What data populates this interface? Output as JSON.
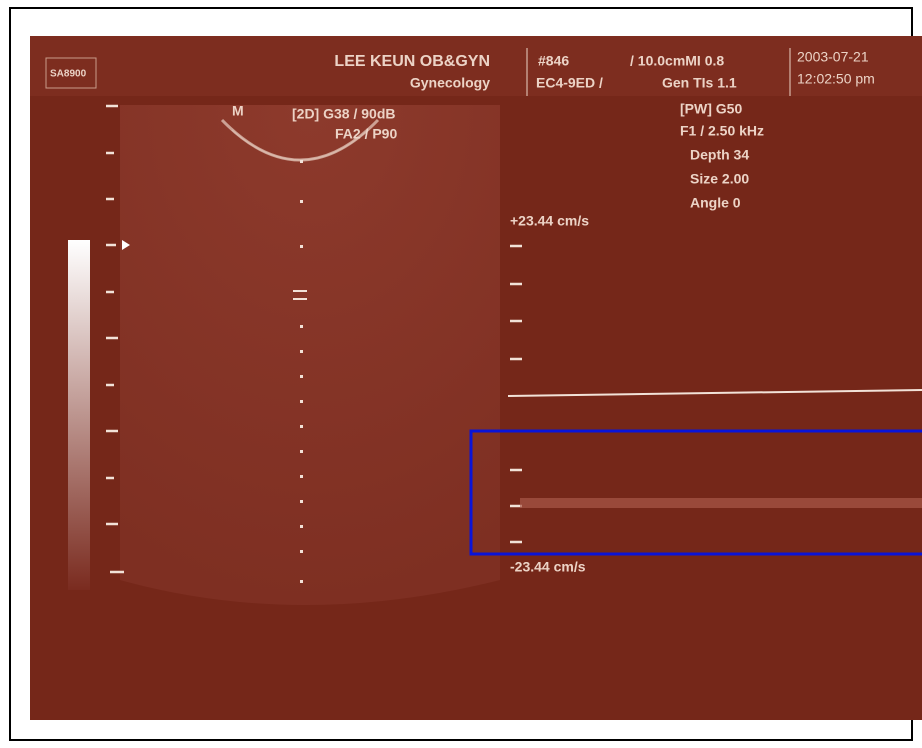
{
  "header": {
    "device": "SA8900",
    "clinic": "LEE KEUN OB&GYN",
    "department": "Gynecology",
    "patient_id": "#846",
    "probe": "EC4-9ED /",
    "depth_mi": "/ 10.0cmMI 0.8",
    "gen_tis": "Gen TIs 1.1",
    "date": "2003-07-21",
    "time": "12:02:50 pm"
  },
  "image_2d": {
    "marker": "M",
    "gain": "[2D] G38 / 90dB",
    "settings": "FA2 / P90"
  },
  "doppler": {
    "params": [
      "[PW] G50",
      "F1 / 2.50 kHz",
      "Depth 34",
      "Size 2.00",
      "Angle 0"
    ],
    "scale_top": "+23.44 cm/s",
    "scale_bottom": "-23.44 cm/s"
  }
}
